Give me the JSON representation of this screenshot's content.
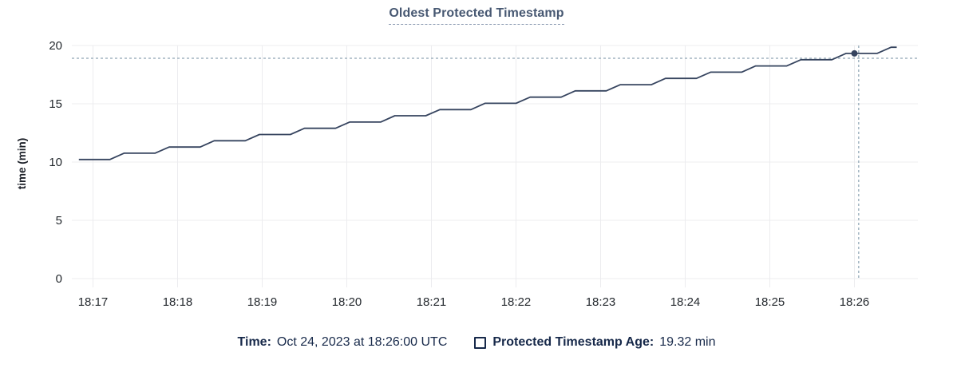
{
  "title": "Oldest Protected Timestamp",
  "footer": {
    "time_label": "Time:",
    "time_value": "Oct 24, 2023 at 18:26:00 UTC",
    "series_label": "Protected Timestamp Age:",
    "series_value": "19.32 min",
    "series_checkbox_checked": false
  },
  "colors": {
    "title": "#475872",
    "title_underline": "#8b9ab1",
    "line": "#36445f",
    "grid": "#ececef",
    "axis_text": "#24292e",
    "y_axis_title_text": "#1b1f27",
    "crosshair": "#a2b4c1",
    "footer_text": "#17294a",
    "background": "#ffffff"
  },
  "chart_data": {
    "type": "line",
    "title": "Oldest Protected Timestamp",
    "xlabel": "",
    "ylabel": "time (min)",
    "ylim": [
      0,
      20
    ],
    "y_ticks": [
      0,
      5,
      10,
      15,
      20
    ],
    "x_range": [
      "18:16:45",
      "18:26:45"
    ],
    "x_ticks": [
      "18:17",
      "18:18",
      "18:19",
      "18:20",
      "18:21",
      "18:22",
      "18:23",
      "18:24",
      "18:25",
      "18:26"
    ],
    "grid": true,
    "legend_position": "bottom",
    "series": [
      {
        "name": "Protected Timestamp Age",
        "unit": "min",
        "points": [
          [
            "18:16:50",
            10.22
          ],
          [
            "18:17:12",
            10.22
          ],
          [
            "18:17:22",
            10.76
          ],
          [
            "18:17:44",
            10.76
          ],
          [
            "18:17:54",
            11.29
          ],
          [
            "18:18:16",
            11.29
          ],
          [
            "18:18:26",
            11.83
          ],
          [
            "18:18:48",
            11.83
          ],
          [
            "18:18:58",
            12.36
          ],
          [
            "18:19:20",
            12.36
          ],
          [
            "18:19:30",
            12.9
          ],
          [
            "18:19:52",
            12.9
          ],
          [
            "18:20:02",
            13.43
          ],
          [
            "18:20:24",
            13.43
          ],
          [
            "18:20:34",
            13.97
          ],
          [
            "18:20:56",
            13.97
          ],
          [
            "18:21:06",
            14.5
          ],
          [
            "18:21:28",
            14.5
          ],
          [
            "18:21:38",
            15.04
          ],
          [
            "18:22:00",
            15.04
          ],
          [
            "18:22:10",
            15.57
          ],
          [
            "18:22:32",
            15.57
          ],
          [
            "18:22:42",
            16.11
          ],
          [
            "18:23:04",
            16.11
          ],
          [
            "18:23:14",
            16.64
          ],
          [
            "18:23:36",
            16.64
          ],
          [
            "18:23:46",
            17.18
          ],
          [
            "18:24:08",
            17.18
          ],
          [
            "18:24:18",
            17.71
          ],
          [
            "18:24:40",
            17.71
          ],
          [
            "18:24:50",
            18.25
          ],
          [
            "18:25:12",
            18.25
          ],
          [
            "18:25:22",
            18.78
          ],
          [
            "18:25:44",
            18.78
          ],
          [
            "18:25:54",
            19.32
          ],
          [
            "18:26:16",
            19.32
          ],
          [
            "18:26:26",
            19.85
          ],
          [
            "18:26:30",
            19.85
          ]
        ]
      }
    ],
    "hover": {
      "time": "18:26:00",
      "value": 19.32,
      "guideline_x_time": "18:26:03",
      "guideline_y_value": 18.9
    }
  }
}
